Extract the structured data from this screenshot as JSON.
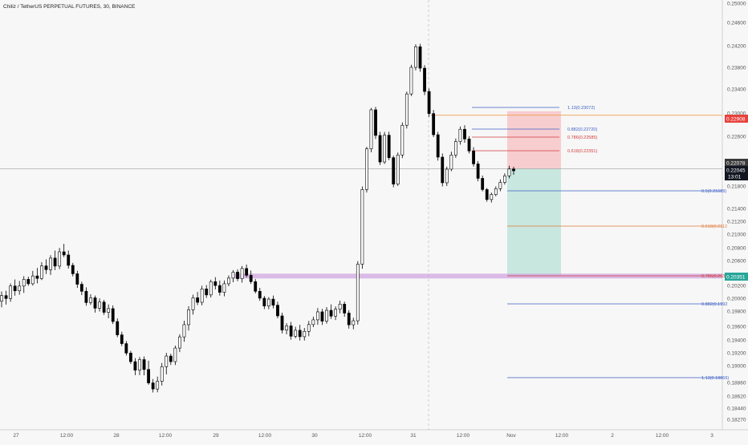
{
  "chart_data": {
    "type": "candlestick",
    "title": "Chiliz / TetherUS PERPETUAL FUTURES, 30, BINANCE",
    "y_ticks": [
      "0.25000",
      "0.24600",
      "0.24200",
      "0.23800",
      "0.23400",
      "0.23000",
      "0.22600",
      "0.22200",
      "0.21800",
      "0.21400",
      "0.21200",
      "0.21000",
      "0.20800",
      "0.20600",
      "0.20200",
      "0.20000",
      "0.19800",
      "0.19600",
      "0.19400",
      "0.19200",
      "0.19000",
      "0.18860",
      "0.18620",
      "0.18440",
      "0.18270"
    ],
    "x_ticks": [
      "27",
      "12:00",
      "28",
      "12:00",
      "29",
      "12:00",
      "30",
      "12:00",
      "31",
      "12:00",
      "Nov",
      "12:00",
      "2",
      "12:00",
      "3"
    ],
    "fib_levels": [
      {
        "label": "1.13(0.23072)",
        "color": "#3d5fc4"
      },
      {
        "label": "0.882(0.22720)",
        "color": "#3d5fc4"
      },
      {
        "label": "0.786(0.22585)",
        "color": "#d23b3b"
      },
      {
        "label": "0.618(0.22351)",
        "color": "#d23b3b"
      },
      {
        "label": "0.5(0.21689)",
        "color": "#3d5fc4"
      },
      {
        "label": "0.618(0.2112",
        "color": "#e07b39"
      },
      {
        "label": "0.786(0.2035",
        "color": "#d23b3b"
      },
      {
        "label": "0.882(0.1992",
        "color": "#3d5fc4"
      },
      {
        "label": "1.13(0.18866)",
        "color": "#3d5fc4"
      }
    ],
    "price_tags": {
      "stop": {
        "value": "0.22908",
        "color": "#e8413c"
      },
      "current": {
        "value": "0.22078",
        "color": "#3a3a3a"
      },
      "last": {
        "value": "0.22045",
        "color": "#131722"
      },
      "countdown": "13:01",
      "target": {
        "value": "0.20351",
        "color": "#26a69a"
      }
    },
    "series": [
      {
        "t": 0,
        "o": 0.19955,
        "h": 0.20106,
        "l": 0.1986,
        "c": 0.20042
      },
      {
        "t": 1,
        "o": 0.20042,
        "h": 0.20117,
        "l": 0.19901,
        "c": 0.19996
      },
      {
        "t": 2,
        "o": 0.19996,
        "h": 0.20232,
        "l": 0.19946,
        "c": 0.20191
      },
      {
        "t": 3,
        "o": 0.20191,
        "h": 0.20296,
        "l": 0.20041,
        "c": 0.20116
      },
      {
        "t": 4,
        "o": 0.20116,
        "h": 0.20272,
        "l": 0.20055,
        "c": 0.2019
      },
      {
        "t": 5,
        "o": 0.2019,
        "h": 0.20349,
        "l": 0.20083,
        "c": 0.20298
      },
      {
        "t": 6,
        "o": 0.20298,
        "h": 0.20341,
        "l": 0.20195,
        "c": 0.20227
      },
      {
        "t": 7,
        "o": 0.20227,
        "h": 0.20434,
        "l": 0.20198,
        "c": 0.20353
      },
      {
        "t": 8,
        "o": 0.20353,
        "h": 0.20482,
        "l": 0.20233,
        "c": 0.20313
      },
      {
        "t": 9,
        "o": 0.20313,
        "h": 0.20574,
        "l": 0.20285,
        "c": 0.20514
      },
      {
        "t": 10,
        "o": 0.20514,
        "h": 0.20619,
        "l": 0.20384,
        "c": 0.20454
      },
      {
        "t": 11,
        "o": 0.20454,
        "h": 0.20685,
        "l": 0.20369,
        "c": 0.20639
      },
      {
        "t": 12,
        "o": 0.20639,
        "h": 0.20757,
        "l": 0.20446,
        "c": 0.20511
      },
      {
        "t": 13,
        "o": 0.20511,
        "h": 0.20798,
        "l": 0.20462,
        "c": 0.20737
      },
      {
        "t": 14,
        "o": 0.20737,
        "h": 0.20858,
        "l": 0.20655,
        "c": 0.20688
      },
      {
        "t": 15,
        "o": 0.20688,
        "h": 0.20756,
        "l": 0.20471,
        "c": 0.20523
      },
      {
        "t": 16,
        "o": 0.20523,
        "h": 0.20563,
        "l": 0.20346,
        "c": 0.20388
      },
      {
        "t": 17,
        "o": 0.20388,
        "h": 0.20436,
        "l": 0.20163,
        "c": 0.20219
      },
      {
        "t": 18,
        "o": 0.20219,
        "h": 0.2026,
        "l": 0.20049,
        "c": 0.20109
      },
      {
        "t": 19,
        "o": 0.20109,
        "h": 0.20171,
        "l": 0.19884,
        "c": 0.19933
      },
      {
        "t": 20,
        "o": 0.19933,
        "h": 0.20063,
        "l": 0.19897,
        "c": 0.20007
      },
      {
        "t": 21,
        "o": 0.20007,
        "h": 0.20042,
        "l": 0.1978,
        "c": 0.19845
      },
      {
        "t": 22,
        "o": 0.19845,
        "h": 0.19999,
        "l": 0.19795,
        "c": 0.19941
      },
      {
        "t": 23,
        "o": 0.19941,
        "h": 0.19975,
        "l": 0.1975,
        "c": 0.19784
      },
      {
        "t": 24,
        "o": 0.19784,
        "h": 0.19905,
        "l": 0.19705,
        "c": 0.19839
      },
      {
        "t": 25,
        "o": 0.19839,
        "h": 0.19889,
        "l": 0.1963,
        "c": 0.19663
      },
      {
        "t": 26,
        "o": 0.19663,
        "h": 0.19705,
        "l": 0.19441,
        "c": 0.19475
      },
      {
        "t": 27,
        "o": 0.19475,
        "h": 0.19521,
        "l": 0.19305,
        "c": 0.19343
      },
      {
        "t": 28,
        "o": 0.19343,
        "h": 0.19384,
        "l": 0.19158,
        "c": 0.19196
      },
      {
        "t": 29,
        "o": 0.19196,
        "h": 0.1923,
        "l": 0.19025,
        "c": 0.19062
      },
      {
        "t": 30,
        "o": 0.19062,
        "h": 0.19117,
        "l": 0.18921,
        "c": 0.18962
      },
      {
        "t": 31,
        "o": 0.18962,
        "h": 0.19135,
        "l": 0.18921,
        "c": 0.19094
      },
      {
        "t": 32,
        "o": 0.19094,
        "h": 0.19143,
        "l": 0.18919,
        "c": 0.18968
      },
      {
        "t": 33,
        "o": 0.18968,
        "h": 0.19076,
        "l": 0.18819,
        "c": 0.18852
      },
      {
        "t": 34,
        "o": 0.18852,
        "h": 0.18888,
        "l": 0.18684,
        "c": 0.18745
      },
      {
        "t": 35,
        "o": 0.18745,
        "h": 0.18909,
        "l": 0.18687,
        "c": 0.1887
      },
      {
        "t": 36,
        "o": 0.1887,
        "h": 0.19041,
        "l": 0.18805,
        "c": 0.18991
      },
      {
        "t": 37,
        "o": 0.18991,
        "h": 0.19199,
        "l": 0.18927,
        "c": 0.19149
      },
      {
        "t": 38,
        "o": 0.19149,
        "h": 0.19186,
        "l": 0.1901,
        "c": 0.19062
      },
      {
        "t": 39,
        "o": 0.19062,
        "h": 0.19312,
        "l": 0.19009,
        "c": 0.19274
      },
      {
        "t": 40,
        "o": 0.19274,
        "h": 0.19484,
        "l": 0.19211,
        "c": 0.19445
      },
      {
        "t": 41,
        "o": 0.19445,
        "h": 0.19674,
        "l": 0.19372,
        "c": 0.19622
      },
      {
        "t": 42,
        "o": 0.19622,
        "h": 0.19876,
        "l": 0.19538,
        "c": 0.1982
      },
      {
        "t": 43,
        "o": 0.1982,
        "h": 0.20057,
        "l": 0.19754,
        "c": 0.20008
      },
      {
        "t": 44,
        "o": 0.20008,
        "h": 0.20099,
        "l": 0.19893,
        "c": 0.19937
      },
      {
        "t": 45,
        "o": 0.19937,
        "h": 0.20196,
        "l": 0.1989,
        "c": 0.20146
      },
      {
        "t": 46,
        "o": 0.20146,
        "h": 0.20207,
        "l": 0.20005,
        "c": 0.20052
      },
      {
        "t": 47,
        "o": 0.20052,
        "h": 0.20293,
        "l": 0.20011,
        "c": 0.20261
      },
      {
        "t": 48,
        "o": 0.20261,
        "h": 0.20333,
        "l": 0.20138,
        "c": 0.20199
      },
      {
        "t": 49,
        "o": 0.20199,
        "h": 0.20279,
        "l": 0.20041,
        "c": 0.20093
      },
      {
        "t": 50,
        "o": 0.20093,
        "h": 0.2028,
        "l": 0.2003,
        "c": 0.20227
      },
      {
        "t": 51,
        "o": 0.20227,
        "h": 0.20361,
        "l": 0.20187,
        "c": 0.20318
      },
      {
        "t": 52,
        "o": 0.20318,
        "h": 0.20447,
        "l": 0.20252,
        "c": 0.20415
      },
      {
        "t": 53,
        "o": 0.20415,
        "h": 0.20459,
        "l": 0.20267,
        "c": 0.20309
      },
      {
        "t": 54,
        "o": 0.20309,
        "h": 0.20513,
        "l": 0.20245,
        "c": 0.20473
      },
      {
        "t": 55,
        "o": 0.20473,
        "h": 0.20536,
        "l": 0.20331,
        "c": 0.20363
      },
      {
        "t": 56,
        "o": 0.20363,
        "h": 0.2044,
        "l": 0.20224,
        "c": 0.20261
      },
      {
        "t": 57,
        "o": 0.20261,
        "h": 0.20302,
        "l": 0.20076,
        "c": 0.20109
      },
      {
        "t": 58,
        "o": 0.20109,
        "h": 0.20163,
        "l": 0.1996,
        "c": 0.20001
      },
      {
        "t": 59,
        "o": 0.20001,
        "h": 0.20036,
        "l": 0.19832,
        "c": 0.1988
      },
      {
        "t": 60,
        "o": 0.1988,
        "h": 0.20018,
        "l": 0.19829,
        "c": 0.19987
      },
      {
        "t": 61,
        "o": 0.19987,
        "h": 0.20042,
        "l": 0.19842,
        "c": 0.19892
      },
      {
        "t": 62,
        "o": 0.19892,
        "h": 0.19945,
        "l": 0.19705,
        "c": 0.19737
      },
      {
        "t": 63,
        "o": 0.19737,
        "h": 0.19779,
        "l": 0.19495,
        "c": 0.19545
      },
      {
        "t": 64,
        "o": 0.19545,
        "h": 0.19642,
        "l": 0.19482,
        "c": 0.19606
      },
      {
        "t": 65,
        "o": 0.19606,
        "h": 0.19658,
        "l": 0.19405,
        "c": 0.19455
      },
      {
        "t": 66,
        "o": 0.19455,
        "h": 0.19593,
        "l": 0.19425,
        "c": 0.19542
      },
      {
        "t": 67,
        "o": 0.19542,
        "h": 0.1962,
        "l": 0.19391,
        "c": 0.19448
      },
      {
        "t": 68,
        "o": 0.19448,
        "h": 0.19576,
        "l": 0.19391,
        "c": 0.19526
      },
      {
        "t": 69,
        "o": 0.19526,
        "h": 0.19671,
        "l": 0.19455,
        "c": 0.19623
      },
      {
        "t": 70,
        "o": 0.19623,
        "h": 0.19727,
        "l": 0.19588,
        "c": 0.19685
      },
      {
        "t": 71,
        "o": 0.19685,
        "h": 0.19847,
        "l": 0.1962,
        "c": 0.1979
      },
      {
        "t": 72,
        "o": 0.1979,
        "h": 0.19834,
        "l": 0.19618,
        "c": 0.19668
      },
      {
        "t": 73,
        "o": 0.19668,
        "h": 0.19863,
        "l": 0.19635,
        "c": 0.19812
      },
      {
        "t": 74,
        "o": 0.19812,
        "h": 0.19905,
        "l": 0.19698,
        "c": 0.19734
      },
      {
        "t": 75,
        "o": 0.19734,
        "h": 0.19873,
        "l": 0.19683,
        "c": 0.1983
      },
      {
        "t": 76,
        "o": 0.1983,
        "h": 0.19963,
        "l": 0.19771,
        "c": 0.19909
      },
      {
        "t": 77,
        "o": 0.19909,
        "h": 0.19948,
        "l": 0.19726,
        "c": 0.19774
      },
      {
        "t": 78,
        "o": 0.19774,
        "h": 0.19814,
        "l": 0.19566,
        "c": 0.1962
      },
      {
        "t": 79,
        "o": 0.1962,
        "h": 0.19713,
        "l": 0.19557,
        "c": 0.19673
      },
      {
        "t": 80,
        "o": 0.19673,
        "h": 0.20591,
        "l": 0.19623,
        "c": 0.20542
      },
      {
        "t": 81,
        "o": 0.20542,
        "h": 0.21792,
        "l": 0.20469,
        "c": 0.21738
      },
      {
        "t": 82,
        "o": 0.21738,
        "h": 0.22431,
        "l": 0.21684,
        "c": 0.22398
      },
      {
        "t": 83,
        "o": 0.22398,
        "h": 0.23087,
        "l": 0.22344,
        "c": 0.23054
      },
      {
        "t": 84,
        "o": 0.23054,
        "h": 0.23103,
        "l": 0.22557,
        "c": 0.22615
      },
      {
        "t": 85,
        "o": 0.22615,
        "h": 0.22678,
        "l": 0.22138,
        "c": 0.22187
      },
      {
        "t": 86,
        "o": 0.22187,
        "h": 0.22676,
        "l": 0.22155,
        "c": 0.22619
      },
      {
        "t": 87,
        "o": 0.22619,
        "h": 0.22679,
        "l": 0.22217,
        "c": 0.22256
      },
      {
        "t": 88,
        "o": 0.22256,
        "h": 0.22288,
        "l": 0.21778,
        "c": 0.21831
      },
      {
        "t": 89,
        "o": 0.21831,
        "h": 0.22339,
        "l": 0.21801,
        "c": 0.22299
      },
      {
        "t": 90,
        "o": 0.22299,
        "h": 0.22839,
        "l": 0.22249,
        "c": 0.2279
      },
      {
        "t": 91,
        "o": 0.2279,
        "h": 0.23357,
        "l": 0.22734,
        "c": 0.23318
      },
      {
        "t": 92,
        "o": 0.23318,
        "h": 0.23849,
        "l": 0.23284,
        "c": 0.238
      },
      {
        "t": 93,
        "o": 0.238,
        "h": 0.24224,
        "l": 0.23745,
        "c": 0.24181
      },
      {
        "t": 94,
        "o": 0.24181,
        "h": 0.24233,
        "l": 0.23719,
        "c": 0.23785
      },
      {
        "t": 95,
        "o": 0.23785,
        "h": 0.23841,
        "l": 0.23298,
        "c": 0.23359
      },
      {
        "t": 96,
        "o": 0.23359,
        "h": 0.23411,
        "l": 0.22937,
        "c": 0.22991
      },
      {
        "t": 97,
        "o": 0.22991,
        "h": 0.23052,
        "l": 0.22587,
        "c": 0.22627
      },
      {
        "t": 98,
        "o": 0.22627,
        "h": 0.22678,
        "l": 0.22209,
        "c": 0.22265
      },
      {
        "t": 99,
        "o": 0.22265,
        "h": 0.22324,
        "l": 0.21793,
        "c": 0.21852
      },
      {
        "t": 100,
        "o": 0.21852,
        "h": 0.22112,
        "l": 0.218,
        "c": 0.22071
      },
      {
        "t": 101,
        "o": 0.22071,
        "h": 0.22353,
        "l": 0.22038,
        "c": 0.22299
      },
      {
        "t": 102,
        "o": 0.22299,
        "h": 0.22565,
        "l": 0.22253,
        "c": 0.22515
      },
      {
        "t": 103,
        "o": 0.22515,
        "h": 0.22769,
        "l": 0.22466,
        "c": 0.22721
      },
      {
        "t": 104,
        "o": 0.22721,
        "h": 0.22791,
        "l": 0.22497,
        "c": 0.22557
      },
      {
        "t": 105,
        "o": 0.22557,
        "h": 0.22601,
        "l": 0.22325,
        "c": 0.22364
      },
      {
        "t": 106,
        "o": 0.22364,
        "h": 0.22425,
        "l": 0.22111,
        "c": 0.22156
      },
      {
        "t": 107,
        "o": 0.22156,
        "h": 0.22202,
        "l": 0.21875,
        "c": 0.21923
      },
      {
        "t": 108,
        "o": 0.21923,
        "h": 0.21969,
        "l": 0.21704,
        "c": 0.21737
      },
      {
        "t": 109,
        "o": 0.21737,
        "h": 0.21766,
        "l": 0.2152,
        "c": 0.21559
      },
      {
        "t": 110,
        "o": 0.21559,
        "h": 0.21683,
        "l": 0.21505,
        "c": 0.21649
      },
      {
        "t": 111,
        "o": 0.21649,
        "h": 0.21793,
        "l": 0.21615,
        "c": 0.21753
      },
      {
        "t": 112,
        "o": 0.21753,
        "h": 0.21907,
        "l": 0.21707,
        "c": 0.21858
      },
      {
        "t": 113,
        "o": 0.21858,
        "h": 0.22005,
        "l": 0.21823,
        "c": 0.21964
      },
      {
        "t": 114,
        "o": 0.21964,
        "h": 0.22126,
        "l": 0.21922,
        "c": 0.22074
      },
      {
        "t": 115,
        "o": 0.22074,
        "h": 0.22111,
        "l": 0.21981,
        "c": 0.22045
      }
    ]
  }
}
